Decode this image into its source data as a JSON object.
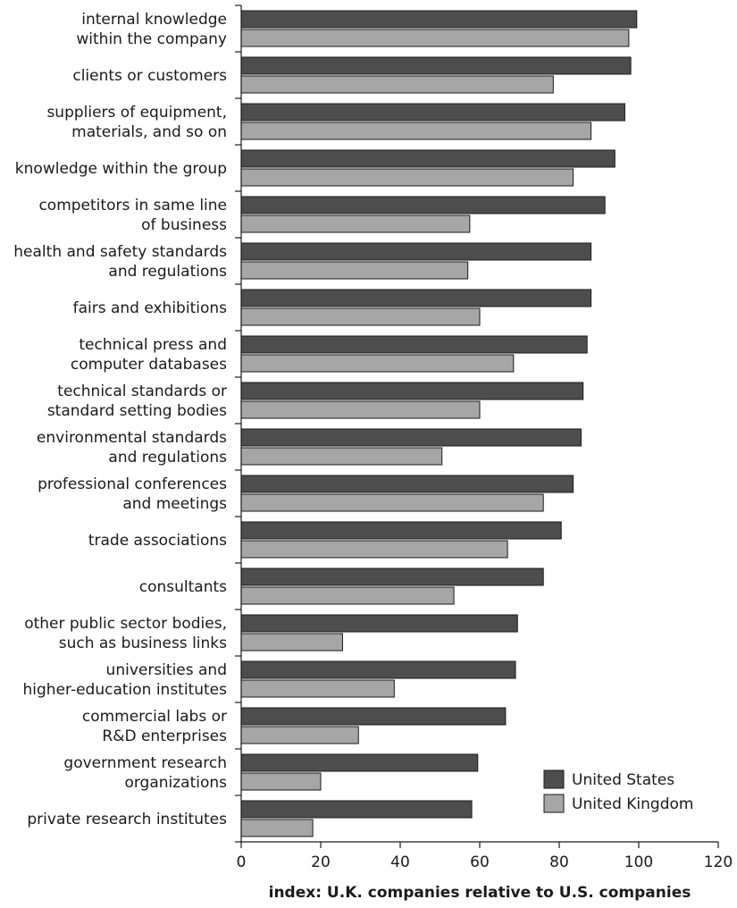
{
  "chart_data": {
    "type": "bar",
    "orientation": "horizontal",
    "categories": [
      [
        "internal knowledge",
        "within the company"
      ],
      [
        "clients or customers"
      ],
      [
        "suppliers of equipment,",
        "materials, and so on"
      ],
      [
        "knowledge within the group"
      ],
      [
        "competitors in same line",
        "of business"
      ],
      [
        "health and safety standards",
        "and regulations"
      ],
      [
        "fairs and exhibitions"
      ],
      [
        "technical press and",
        "computer databases"
      ],
      [
        "technical standards or",
        "standard setting bodies"
      ],
      [
        "environmental standards",
        "and regulations"
      ],
      [
        "professional conferences",
        "and meetings"
      ],
      [
        "trade associations"
      ],
      [
        "consultants"
      ],
      [
        "other public sector bodies,",
        "such as business links"
      ],
      [
        "universities and",
        "higher-education institutes"
      ],
      [
        "commercial labs or",
        "R&D enterprises"
      ],
      [
        "government research",
        "organizations"
      ],
      [
        "private research institutes"
      ]
    ],
    "series": [
      {
        "name": "United States",
        "color": "#4d4d4d",
        "values": [
          99.5,
          98,
          96.5,
          94,
          91.5,
          88,
          88,
          87,
          86,
          85.5,
          83.5,
          80.5,
          76,
          69.5,
          69,
          66.5,
          59.5,
          58
        ]
      },
      {
        "name": "United Kingdom",
        "color": "#a6a6a6",
        "values": [
          97.5,
          78.5,
          88,
          83.5,
          57.5,
          57,
          60,
          68.5,
          60,
          50.5,
          76,
          67,
          53.5,
          25.5,
          38.5,
          29.5,
          20,
          18
        ]
      }
    ],
    "xlabel": "index: U.K. companies relative to U.S. companies",
    "ylabel": "",
    "title": "",
    "xlim": [
      0,
      120
    ],
    "xticks": [
      0,
      20,
      40,
      60,
      80,
      100,
      120
    ],
    "grid": false,
    "legend_position": "bottom-right"
  }
}
